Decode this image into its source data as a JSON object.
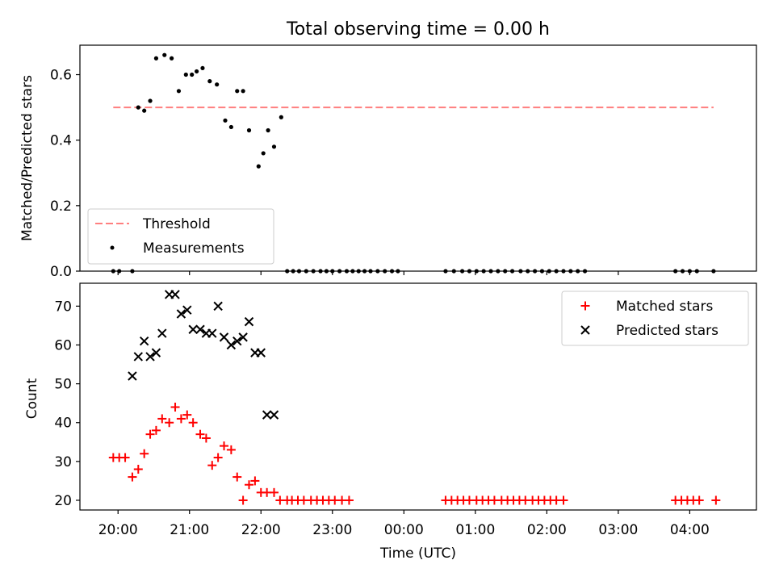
{
  "title": "Total observing time = 0.00 h",
  "colors": {
    "threshold": "#ff7f7f",
    "matched": "#ff0000",
    "predicted": "#000000",
    "measurements": "#000000"
  },
  "chart_data": [
    {
      "type": "scatter",
      "ylabel": "Matched/Predicted stars",
      "ylim": [
        0,
        0.69
      ],
      "yticks": [
        "0.0",
        "0.2",
        "0.4",
        "0.6"
      ],
      "yticks_values": [
        0,
        0.2,
        0.4,
        0.6
      ],
      "legend": {
        "position": "lower-left",
        "entries": [
          "Threshold",
          "Measurements"
        ]
      },
      "threshold": {
        "name": "Threshold",
        "y": 0.5,
        "x_start": "19:56",
        "x_end": "04:20"
      },
      "series": [
        {
          "name": "Measurements",
          "x": [
            "19:56",
            "20:01",
            "20:12",
            "20:17",
            "20:22",
            "20:27",
            "20:32",
            "20:39",
            "20:45",
            "20:51",
            "20:57",
            "21:02",
            "21:06",
            "21:11",
            "21:17",
            "21:23",
            "21:30",
            "21:35",
            "21:40",
            "21:45",
            "21:50",
            "21:58",
            "22:02",
            "22:06",
            "22:11",
            "22:17",
            "22:22",
            "22:27",
            "22:32",
            "22:38",
            "22:44",
            "22:50",
            "22:55",
            "23:00",
            "23:06",
            "23:12",
            "23:17",
            "23:22",
            "23:27",
            "23:32",
            "23:38",
            "23:44",
            "23:50",
            "23:55",
            "00:35",
            "00:42",
            "00:49",
            "00:55",
            "01:01",
            "01:07",
            "01:13",
            "01:19",
            "01:25",
            "01:31",
            "01:38",
            "01:44",
            "01:50",
            "01:56",
            "02:02",
            "02:08",
            "02:14",
            "02:20",
            "02:26",
            "02:32",
            "03:48",
            "03:54",
            "04:00",
            "04:06",
            "04:20"
          ],
          "y": [
            0,
            0,
            0,
            0.5,
            0.49,
            0.52,
            0.65,
            0.66,
            0.65,
            0.55,
            0.6,
            0.6,
            0.61,
            0.62,
            0.58,
            0.57,
            0.46,
            0.44,
            0.55,
            0.55,
            0.43,
            0.32,
            0.36,
            0.43,
            0.38,
            0.47,
            0,
            0,
            0,
            0,
            0,
            0,
            0,
            0,
            0,
            0,
            0,
            0,
            0,
            0,
            0,
            0,
            0,
            0,
            0,
            0,
            0,
            0,
            0,
            0,
            0,
            0,
            0,
            0,
            0,
            0,
            0,
            0,
            0,
            0,
            0,
            0,
            0,
            0,
            0,
            0,
            0,
            0,
            0
          ]
        }
      ]
    },
    {
      "type": "scatter",
      "xlabel": "Time (UTC)",
      "ylabel": "Count",
      "ylim": [
        17.5,
        75.9
      ],
      "yticks": [
        "20",
        "30",
        "40",
        "50",
        "60",
        "70"
      ],
      "yticks_values": [
        20,
        30,
        40,
        50,
        60,
        70
      ],
      "xticks": [
        "20:00",
        "21:00",
        "22:00",
        "23:00",
        "00:00",
        "01:00",
        "02:00",
        "03:00",
        "04:00"
      ],
      "x_range": [
        "19:28",
        "04:56"
      ],
      "legend": {
        "position": "top-right",
        "entries": [
          "Matched stars",
          "Predicted stars"
        ]
      },
      "series": [
        {
          "name": "Matched stars",
          "x": [
            "19:56",
            "20:01",
            "20:06",
            "20:12",
            "20:17",
            "20:22",
            "20:27",
            "20:32",
            "20:37",
            "20:43",
            "20:48",
            "20:53",
            "20:58",
            "21:03",
            "21:09",
            "21:14",
            "21:19",
            "21:24",
            "21:29",
            "21:35",
            "21:40",
            "21:45",
            "21:50",
            "21:55",
            "22:00",
            "22:05",
            "22:11",
            "22:16",
            "22:22",
            "22:26",
            "22:31",
            "22:36",
            "22:42",
            "22:47",
            "22:52",
            "22:57",
            "23:02",
            "23:08",
            "23:14",
            "00:35",
            "00:40",
            "00:45",
            "00:50",
            "00:55",
            "01:01",
            "01:06",
            "01:11",
            "01:16",
            "01:22",
            "01:27",
            "01:32",
            "01:37",
            "01:42",
            "01:48",
            "01:53",
            "01:58",
            "02:03",
            "02:08",
            "02:14",
            "03:48",
            "03:53",
            "03:58",
            "04:03",
            "04:08",
            "04:22"
          ],
          "y": [
            31,
            31,
            31,
            26,
            28,
            32,
            37,
            38,
            41,
            40,
            44,
            41,
            42,
            40,
            37,
            36,
            29,
            31,
            34,
            33,
            26,
            20,
            24,
            25,
            22,
            22,
            22,
            20,
            20,
            20,
            20,
            20,
            20,
            20,
            20,
            20,
            20,
            20,
            20,
            20,
            20,
            20,
            20,
            20,
            20,
            20,
            20,
            20,
            20,
            20,
            20,
            20,
            20,
            20,
            20,
            20,
            20,
            20,
            20,
            20,
            20,
            20,
            20,
            20,
            20
          ]
        },
        {
          "name": "Predicted stars",
          "x": [
            "20:12",
            "20:17",
            "20:22",
            "20:27",
            "20:32",
            "20:37",
            "20:43",
            "20:48",
            "20:53",
            "20:58",
            "21:03",
            "21:09",
            "21:14",
            "21:19",
            "21:24",
            "21:29",
            "21:35",
            "21:40",
            "21:45",
            "21:50",
            "21:55",
            "22:00",
            "22:05",
            "22:11"
          ],
          "y": [
            52,
            57,
            61,
            57,
            58,
            63,
            73,
            73,
            68,
            69,
            64,
            64,
            63,
            63,
            70,
            62,
            60,
            61,
            62,
            66,
            58,
            58,
            42,
            42
          ]
        }
      ]
    }
  ]
}
